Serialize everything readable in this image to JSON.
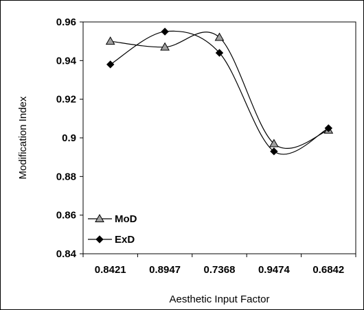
{
  "chart_data": {
    "type": "line",
    "title": "",
    "xlabel": "Aesthetic Input Factor",
    "ylabel": "Modification Index",
    "categories": [
      "0.8421",
      "0.8947",
      "0.7368",
      "0.9474",
      "0.6842"
    ],
    "ylim": [
      0.84,
      0.96
    ],
    "yticks": [
      0.84,
      0.86,
      0.88,
      0.9,
      0.92,
      0.94,
      0.96
    ],
    "ytick_labels": [
      "0.84",
      "0.86",
      "0.88",
      "0.9",
      "0.92",
      "0.94",
      "0.96"
    ],
    "grid": false,
    "smooth": true,
    "legend_position": "bottom-left",
    "series": [
      {
        "name": "MoD",
        "marker": "triangle",
        "color": "#000000",
        "marker_fill": "#a0a0a0",
        "values": [
          0.95,
          0.947,
          0.952,
          0.897,
          0.904
        ]
      },
      {
        "name": "ExD",
        "marker": "diamond",
        "color": "#000000",
        "marker_fill": "#000000",
        "values": [
          0.938,
          0.955,
          0.944,
          0.893,
          0.905
        ]
      }
    ]
  }
}
